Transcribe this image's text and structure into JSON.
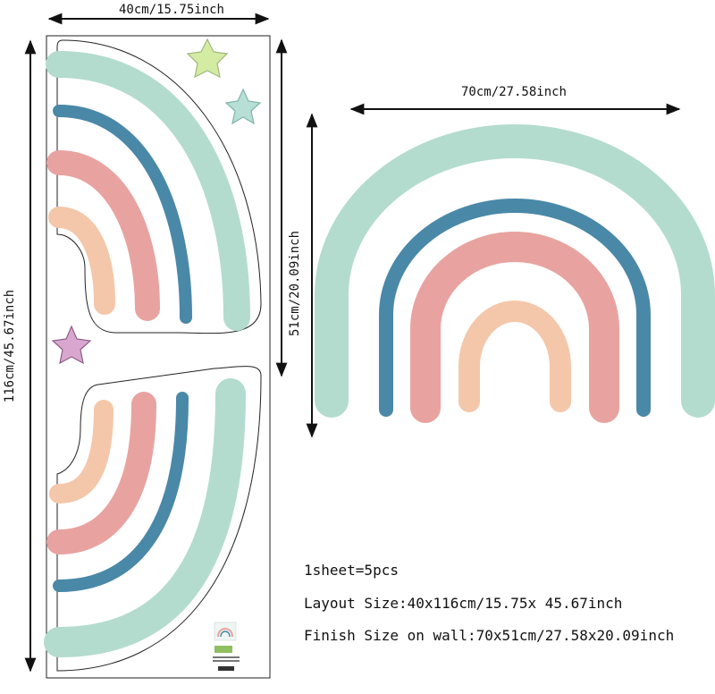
{
  "dimensions": {
    "sheet_width": "40cm/15.75inch",
    "sheet_height": "116cm/45.67inch",
    "rainbow_width": "70cm/27.58inch",
    "rainbow_height": "51cm/20.09inch"
  },
  "info": {
    "pieces": "1sheet=5pcs",
    "layout_size": "Layout Size:40x116cm/15.75x 45.67inch",
    "finish_size": "Finish Size on wall:70x51cm/27.58x20.09inch"
  },
  "colors": {
    "mint": "#b3dccf",
    "blue": "#4a88a8",
    "pink": "#e8a3a0",
    "peach": "#f4c7aa",
    "lime_star": "#d3eba2",
    "teal_star": "#b7dfd6",
    "purple_star": "#d9a6cf"
  }
}
